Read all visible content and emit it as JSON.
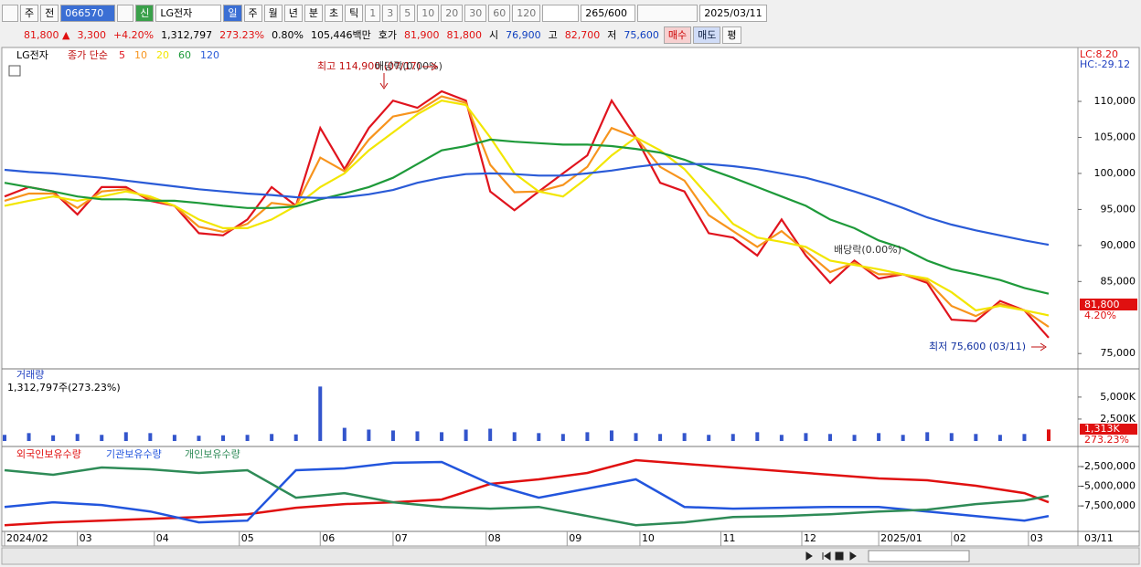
{
  "toolbar": {
    "market": "주",
    "kind": "전",
    "code": "066570",
    "badge": "신",
    "name": "LG전자",
    "periods": [
      "일",
      "주",
      "월",
      "년",
      "분",
      "초",
      "틱"
    ],
    "intervals": [
      "1",
      "3",
      "5",
      "10",
      "20",
      "30",
      "60",
      "120"
    ],
    "count": "265/600",
    "date": "2025/03/11"
  },
  "quote": {
    "price": "81,800 ▲",
    "change": "3,300",
    "change_pct": "+4.20%",
    "volume": "1,312,797",
    "volume_ratio": "273.23%",
    "turnover": "0.80%",
    "amount": "105,446백만",
    "ask_label": "호가",
    "ask": "81,900",
    "bid": "81,800",
    "open_label": "시",
    "open": "76,900",
    "high_label": "고",
    "high": "82,700",
    "low_label": "저",
    "low": "75,600",
    "buy": "매수",
    "sell": "매도",
    "avg": "평"
  },
  "chart_data": [
    {
      "type": "line",
      "title": "LG전자",
      "legend_title": "종가 단순",
      "xlim": [
        0,
        265
      ],
      "ylim": [
        73000,
        117100
      ],
      "yticks": [
        {
          "value": 75000,
          "label": "75,000"
        },
        {
          "value": 85000,
          "label": "85,000"
        },
        {
          "value": 90000,
          "label": "90,000"
        },
        {
          "value": 95000,
          "label": "95,000"
        },
        {
          "value": 100000,
          "label": "100,000"
        },
        {
          "value": 105000,
          "label": "105,000"
        },
        {
          "value": 110000,
          "label": "110,000"
        }
      ],
      "x": [
        0,
        6,
        12,
        18,
        24,
        30,
        36,
        42,
        48,
        54,
        60,
        66,
        72,
        78,
        84,
        90,
        96,
        102,
        108,
        114,
        120,
        126,
        132,
        138,
        144,
        150,
        156,
        162,
        168,
        174,
        180,
        186,
        192,
        198,
        204,
        210,
        216,
        222,
        228,
        234,
        240,
        246,
        252,
        258
      ],
      "series": [
        {
          "name": "5",
          "color": "#e0141e",
          "values": [
            96800,
            98100,
            97500,
            94300,
            98100,
            98100,
            96200,
            95500,
            91700,
            91400,
            93600,
            98100,
            95500,
            106300,
            100600,
            106300,
            110100,
            109100,
            111400,
            110100,
            97500,
            94900,
            97500,
            100000,
            102500,
            110100,
            105000,
            98700,
            97500,
            91700,
            91100,
            88600,
            93600,
            88600,
            84800,
            87900,
            85400,
            86000,
            84800,
            79700,
            79500,
            82300,
            81000,
            77200
          ]
        },
        {
          "name": "10",
          "color": "#f7941d",
          "values": [
            96200,
            97200,
            97200,
            95200,
            97500,
            97800,
            96500,
            95500,
            92600,
            91900,
            93000,
            95900,
            95500,
            102200,
            100300,
            104700,
            107900,
            108600,
            110700,
            109800,
            101200,
            97400,
            97500,
            98400,
            100900,
            106300,
            105000,
            100900,
            99000,
            94200,
            92000,
            89800,
            92000,
            89200,
            86300,
            87600,
            86000,
            86000,
            85100,
            81600,
            80200,
            81900,
            81000,
            78700
          ]
        },
        {
          "name": "20",
          "color": "#f2e600",
          "values": [
            95500,
            96200,
            96800,
            96200,
            96800,
            97500,
            96800,
            95500,
            93600,
            92400,
            92400,
            93600,
            95500,
            98100,
            100000,
            103200,
            105700,
            108200,
            110100,
            109500,
            105000,
            100000,
            97500,
            96800,
            99400,
            102500,
            105000,
            103200,
            100600,
            96800,
            93000,
            91100,
            90500,
            89800,
            87900,
            87300,
            86700,
            86000,
            85400,
            83500,
            81000,
            81600,
            81000,
            80300
          ]
        },
        {
          "name": "60",
          "color": "#1e9a3a",
          "values": [
            98700,
            98100,
            97500,
            96800,
            96400,
            96400,
            96200,
            96200,
            95900,
            95500,
            95200,
            95200,
            95400,
            96400,
            97200,
            98100,
            99400,
            101300,
            103200,
            103800,
            104700,
            104400,
            104200,
            104000,
            104000,
            103800,
            103400,
            102900,
            101900,
            100600,
            99400,
            98100,
            96800,
            95500,
            93600,
            92400,
            90700,
            89600,
            87900,
            86700,
            86000,
            85200,
            84100,
            83300
          ]
        },
        {
          "name": "120",
          "color": "#2a5bd7",
          "values": [
            100500,
            100200,
            100000,
            99700,
            99400,
            99000,
            98600,
            98200,
            97800,
            97500,
            97200,
            97000,
            96700,
            96600,
            96700,
            97100,
            97700,
            98700,
            99400,
            99900,
            100000,
            99900,
            99700,
            99700,
            100000,
            100400,
            100900,
            101300,
            101300,
            101300,
            101000,
            100600,
            100000,
            99400,
            98500,
            97500,
            96400,
            95200,
            93900,
            92900,
            92100,
            91400,
            90700,
            90100
          ]
        }
      ],
      "annotations": [
        "최고 114,900 (07/17)",
        "배당락(0.00%)",
        "배당락(0.00%)",
        "최저 75,600 (03/11)"
      ],
      "corner_labels": [
        "LC:8.20",
        "HC:-29.12"
      ],
      "last_labels": [
        "81,800",
        "4.20%"
      ]
    },
    {
      "type": "bar",
      "title": "거래량",
      "subtitle": "1,312,797주(273.23%)",
      "xlim": [
        0,
        265
      ],
      "ylim": [
        0,
        7900000
      ],
      "yticks": [
        {
          "value": 2500000,
          "label": "2,500K"
        },
        {
          "value": 5000000,
          "label": "5,000K"
        }
      ],
      "x": [
        0,
        6,
        12,
        18,
        24,
        30,
        36,
        42,
        48,
        54,
        60,
        66,
        72,
        78,
        84,
        90,
        96,
        102,
        108,
        114,
        120,
        126,
        132,
        138,
        144,
        150,
        156,
        162,
        168,
        174,
        180,
        186,
        192,
        198,
        204,
        210,
        216,
        222,
        228,
        234,
        240,
        246,
        252,
        258
      ],
      "color": "#3355cc",
      "values": [
        700000,
        900000,
        650000,
        800000,
        700000,
        1000000,
        900000,
        700000,
        600000,
        650000,
        700000,
        800000,
        750000,
        6200000,
        1500000,
        1300000,
        1200000,
        1100000,
        1000000,
        1300000,
        1400000,
        1000000,
        900000,
        800000,
        1000000,
        1200000,
        900000,
        800000,
        900000,
        700000,
        800000,
        1000000,
        700000,
        900000,
        800000,
        700000,
        900000,
        700000,
        1000000,
        900000,
        800000,
        700000,
        800000,
        1313000
      ],
      "last_labels": [
        "1,313K",
        "273.23%"
      ]
    },
    {
      "type": "line",
      "xlim": [
        0,
        265
      ],
      "ylim": [
        -10500000,
        -300000
      ],
      "yticks": [
        {
          "value": -2500000,
          "label": "-2,500,000"
        },
        {
          "value": -5000000,
          "label": "-5,000,000"
        },
        {
          "value": -7500000,
          "label": "-7,500,000"
        }
      ],
      "xticks": [
        {
          "value": 0,
          "label": "2024/02"
        },
        {
          "value": 18,
          "label": "03"
        },
        {
          "value": 37,
          "label": "04"
        },
        {
          "value": 58,
          "label": "05"
        },
        {
          "value": 78,
          "label": "06"
        },
        {
          "value": 96,
          "label": "07"
        },
        {
          "value": 119,
          "label": "08"
        },
        {
          "value": 139,
          "label": "09"
        },
        {
          "value": 157,
          "label": "10"
        },
        {
          "value": 177,
          "label": "11"
        },
        {
          "value": 197,
          "label": "12"
        },
        {
          "value": 216,
          "label": "2025/01"
        },
        {
          "value": 234,
          "label": "02"
        },
        {
          "value": 253,
          "label": "03"
        }
      ],
      "date_label": "03/11",
      "x": [
        0,
        12,
        24,
        36,
        48,
        60,
        72,
        84,
        96,
        108,
        120,
        132,
        144,
        156,
        168,
        180,
        192,
        204,
        216,
        228,
        240,
        252,
        258
      ],
      "series": [
        {
          "name": "외국인보유수량",
          "color": "#e01010",
          "values": [
            -9940000,
            -9590000,
            -9360000,
            -9130000,
            -8900000,
            -8550000,
            -7730000,
            -7270000,
            -7040000,
            -6690000,
            -4710000,
            -4130000,
            -3310000,
            -1690000,
            -2150000,
            -2620000,
            -3080000,
            -3550000,
            -4010000,
            -4240000,
            -4940000,
            -5870000,
            -7040000
          ]
        },
        {
          "name": "기관보유수량",
          "color": "#2255dd",
          "values": [
            -7620000,
            -7040000,
            -7380000,
            -8200000,
            -9590000,
            -9360000,
            -2970000,
            -2730000,
            -2030000,
            -1920000,
            -4710000,
            -6450000,
            -5290000,
            -4130000,
            -7620000,
            -7850000,
            -7730000,
            -7620000,
            -7620000,
            -8200000,
            -8780000,
            -9360000,
            -8780000
          ]
        },
        {
          "name": "개인보유수량",
          "color": "#2e8b57",
          "values": [
            -2970000,
            -3550000,
            -2620000,
            -2850000,
            -3310000,
            -2970000,
            -6450000,
            -5870000,
            -7040000,
            -7620000,
            -7850000,
            -7620000,
            -8780000,
            -9940000,
            -9590000,
            -8900000,
            -8780000,
            -8550000,
            -8200000,
            -7970000,
            -7270000,
            -6800000,
            -6220000
          ]
        }
      ]
    }
  ]
}
